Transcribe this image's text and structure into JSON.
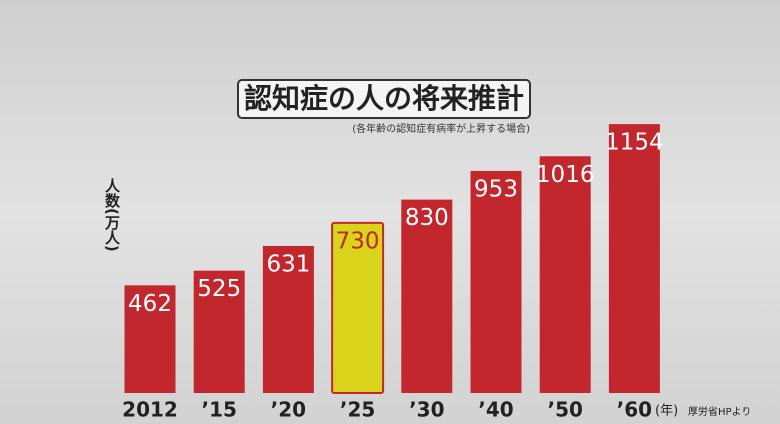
{
  "chart_data": {
    "type": "bar",
    "title": "認知症の人の将来推計",
    "subtitle": "(各年齢の認知症有病率が上昇する場合)",
    "y_label": "人数(万人)",
    "x_label": "(年)",
    "source": "厚労省HPより",
    "categories": [
      "2012",
      "’15",
      "’20",
      "’25",
      "’30",
      "’40",
      "’50",
      "’60"
    ],
    "values": [
      462,
      525,
      631,
      730,
      830,
      953,
      1016,
      1154
    ],
    "colors": [
      "#c1272d",
      "#c1272d",
      "#c1272d",
      "#d9d31c",
      "#c1272d",
      "#c1272d",
      "#c1272d",
      "#c1272d"
    ],
    "label_colors": [
      "#ffffff",
      "#ffffff",
      "#ffffff",
      "#c1272d",
      "#ffffff",
      "#ffffff",
      "#ffffff",
      "#ffffff"
    ]
  }
}
